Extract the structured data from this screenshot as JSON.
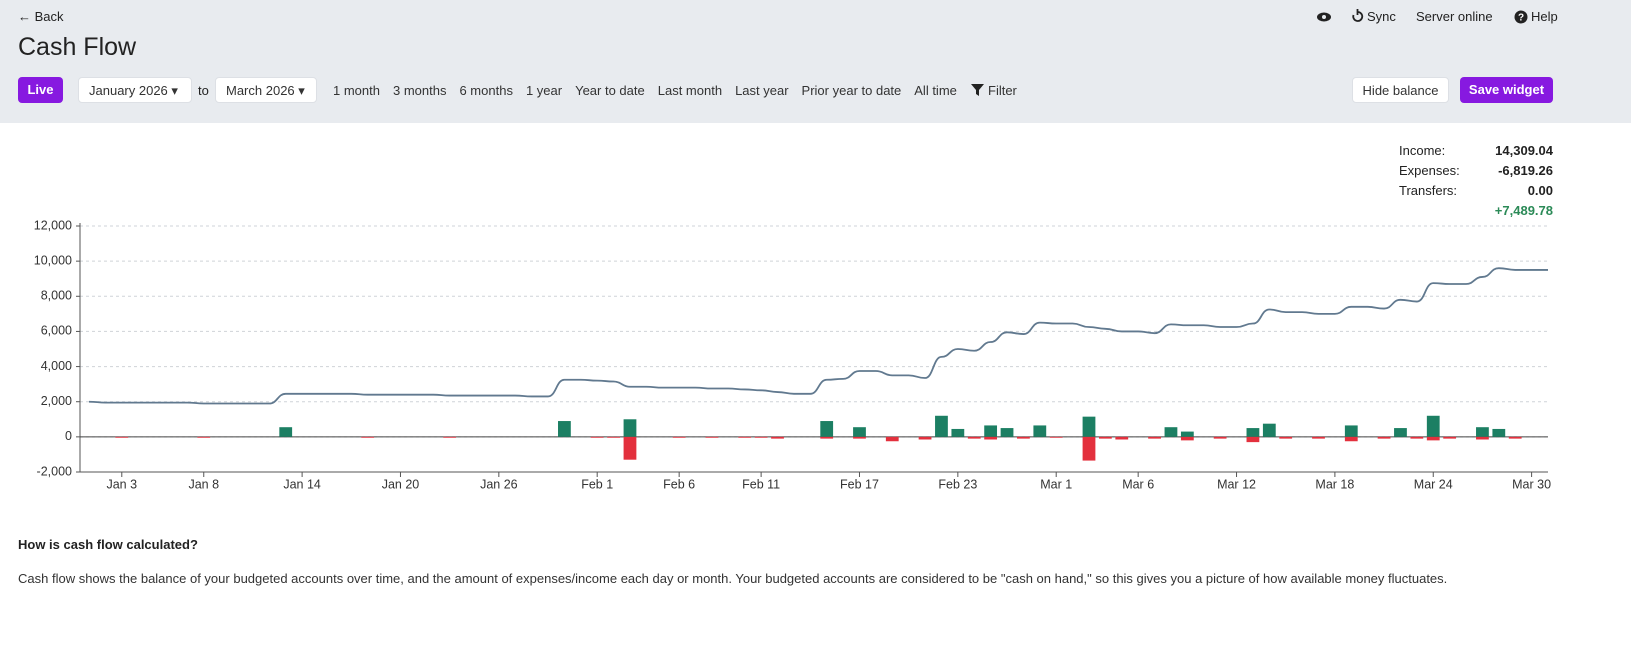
{
  "header": {
    "back": "Back",
    "sync": "Sync",
    "server_status": "Server online",
    "help": "Help",
    "title": "Cash Flow"
  },
  "toolbar": {
    "live": "Live",
    "start": "January 2026",
    "to": "to",
    "end": "March 2026",
    "ranges": [
      "1 month",
      "3 months",
      "6 months",
      "1 year",
      "Year to date",
      "Last month",
      "Last year",
      "Prior year to date",
      "All time"
    ],
    "filter": "Filter",
    "hide_balance": "Hide balance",
    "save_widget": "Save widget"
  },
  "summary": {
    "rows": [
      {
        "label": "Income:",
        "value": "14,309.04"
      },
      {
        "label": "Expenses:",
        "value": "-6,819.26"
      },
      {
        "label": "Transfers:",
        "value": "0.00"
      }
    ],
    "net": "+7,489.78"
  },
  "chart_data": {
    "type": "combo",
    "categories": [
      null,
      null,
      "Jan 3",
      null,
      null,
      null,
      null,
      "Jan 8",
      null,
      null,
      null,
      null,
      null,
      "Jan 14",
      null,
      null,
      null,
      null,
      null,
      "Jan 20",
      null,
      null,
      null,
      null,
      null,
      "Jan 26",
      null,
      null,
      null,
      null,
      null,
      "Feb 1",
      null,
      null,
      null,
      null,
      "Feb 6",
      null,
      null,
      null,
      null,
      "Feb 11",
      null,
      null,
      null,
      null,
      null,
      "Feb 17",
      null,
      null,
      null,
      null,
      null,
      "Feb 23",
      null,
      null,
      null,
      null,
      null,
      "Mar 1",
      null,
      null,
      null,
      null,
      "Mar 6",
      null,
      null,
      null,
      null,
      null,
      "Mar 12",
      null,
      null,
      null,
      null,
      null,
      "Mar 18",
      null,
      null,
      null,
      null,
      null,
      "Mar 24",
      null,
      null,
      null,
      null,
      null,
      "Mar 30",
      null
    ],
    "series": [
      {
        "type": "line",
        "color": "#61798f",
        "values": [
          2000,
          1950,
          1950,
          1950,
          1950,
          1950,
          1950,
          1900,
          1900,
          1900,
          1900,
          1900,
          2450,
          2450,
          2450,
          2450,
          2450,
          2400,
          2400,
          2400,
          2400,
          2400,
          2350,
          2350,
          2350,
          2350,
          2350,
          2300,
          2300,
          3250,
          3250,
          3200,
          3150,
          2850,
          2850,
          2800,
          2800,
          2800,
          2750,
          2750,
          2700,
          2650,
          2550,
          2450,
          2450,
          3250,
          3300,
          3750,
          3750,
          3500,
          3500,
          3350,
          4550,
          5000,
          4900,
          5400,
          5950,
          5850,
          6500,
          6450,
          6450,
          6250,
          6150,
          6000,
          6000,
          5900,
          6400,
          6350,
          6350,
          6250,
          6250,
          6450,
          7250,
          7100,
          7100,
          7000,
          7000,
          7400,
          7400,
          7300,
          7800,
          7700,
          8750,
          8700,
          8700,
          9100,
          9600,
          9500,
          9500,
          9500
        ]
      },
      {
        "type": "bar",
        "color": "#1c7f63",
        "values": [
          0,
          0,
          0,
          0,
          0,
          0,
          0,
          0,
          0,
          0,
          0,
          0,
          550,
          0,
          0,
          0,
          0,
          0,
          0,
          0,
          0,
          0,
          0,
          0,
          0,
          0,
          0,
          0,
          0,
          900,
          0,
          0,
          0,
          1000,
          0,
          0,
          0,
          0,
          0,
          0,
          0,
          0,
          0,
          0,
          0,
          900,
          0,
          550,
          0,
          0,
          0,
          0,
          1200,
          450,
          0,
          650,
          500,
          0,
          650,
          0,
          0,
          1150,
          0,
          0,
          0,
          0,
          550,
          300,
          0,
          0,
          0,
          500,
          750,
          0,
          0,
          0,
          0,
          650,
          0,
          0,
          500,
          0,
          1200,
          0,
          0,
          550,
          450,
          0,
          0,
          0
        ]
      },
      {
        "type": "bar",
        "color": "#e3303d",
        "values": [
          0,
          0,
          -50,
          0,
          0,
          0,
          0,
          -50,
          0,
          0,
          0,
          0,
          0,
          0,
          0,
          0,
          0,
          -50,
          0,
          0,
          0,
          0,
          -50,
          0,
          0,
          0,
          0,
          0,
          0,
          0,
          0,
          -50,
          -50,
          -1300,
          0,
          0,
          -50,
          0,
          -50,
          0,
          -50,
          -50,
          -100,
          0,
          0,
          -100,
          0,
          -100,
          0,
          -250,
          0,
          -150,
          0,
          0,
          -100,
          -150,
          0,
          -100,
          0,
          -50,
          0,
          -1350,
          -100,
          -150,
          0,
          -100,
          0,
          -200,
          0,
          -100,
          0,
          -300,
          0,
          -100,
          0,
          -100,
          0,
          -250,
          0,
          -100,
          0,
          -100,
          -200,
          -100,
          0,
          -150,
          0,
          -100,
          0,
          0
        ]
      }
    ],
    "ylim": [
      -2000,
      12000
    ],
    "yticks": [
      {
        "value": -2000,
        "label": "-2,000"
      },
      0,
      {
        "value": 2000,
        "label": "2,000"
      },
      {
        "value": 4000,
        "label": "4,000"
      },
      {
        "value": 6000,
        "label": "6,000"
      },
      {
        "value": 8000,
        "label": "8,000"
      },
      {
        "value": 10000,
        "label": "10,000"
      },
      {
        "value": 12000,
        "label": "12,000"
      }
    ],
    "grid": true
  },
  "explanation": {
    "title": "How is cash flow calculated?",
    "text": "Cash flow shows the balance of your budgeted accounts over time, and the amount of expenses/income each day or month. Your budgeted accounts are considered to be \"cash on hand,\" so this gives you a picture of how available money fluctuates."
  }
}
